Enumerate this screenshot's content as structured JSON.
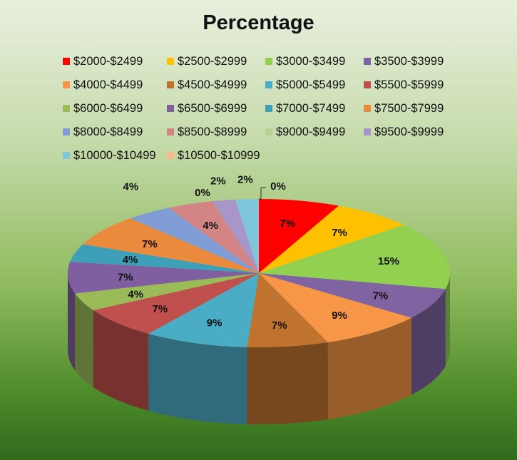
{
  "chart_data": {
    "type": "pie",
    "title": "Percentage",
    "legend_position": "top",
    "slices": [
      {
        "label": "$2000-$2499",
        "value": 7,
        "data_label": "7%",
        "color": "#ff0000"
      },
      {
        "label": "$2500-$2999",
        "value": 7,
        "data_label": "7%",
        "color": "#ffc000"
      },
      {
        "label": "$3000-$3499",
        "value": 15,
        "data_label": "15%",
        "color": "#92d050"
      },
      {
        "label": "$3500-$3999",
        "value": 7,
        "data_label": "7%",
        "color": "#8064a2"
      },
      {
        "label": "$4000-$4499",
        "value": 9,
        "data_label": "9%",
        "color": "#f79646"
      },
      {
        "label": "$4500-$4999",
        "value": 7,
        "data_label": "7%",
        "color": "#c0732f"
      },
      {
        "label": "$5000-$5499",
        "value": 9,
        "data_label": "9%",
        "color": "#4bacc6"
      },
      {
        "label": "$5500-$5999",
        "value": 7,
        "data_label": "7%",
        "color": "#c0504d"
      },
      {
        "label": "$6000-$6499",
        "value": 4,
        "data_label": "4%",
        "color": "#9bbb59"
      },
      {
        "label": "$6500-$6999",
        "value": 7,
        "data_label": "7%",
        "color": "#7f5fa0"
      },
      {
        "label": "$7000-$7499",
        "value": 4,
        "data_label": "4%",
        "color": "#3e9fb9"
      },
      {
        "label": "$7500-$7999",
        "value": 7,
        "data_label": "7%",
        "color": "#ea8a3c"
      },
      {
        "label": "$8000-$8499",
        "value": 4,
        "data_label": "4%",
        "color": "#7f9dd4"
      },
      {
        "label": "$8500-$8999",
        "value": 4,
        "data_label": "4%",
        "color": "#d38585"
      },
      {
        "label": "$9000-$9499",
        "value": 0,
        "data_label": "0%",
        "color": "#b9d396"
      },
      {
        "label": "$9500-$9999",
        "value": 2,
        "data_label": "2%",
        "color": "#a896c8"
      },
      {
        "label": "$10000-$10499",
        "value": 2,
        "data_label": "2%",
        "color": "#7fc6da"
      },
      {
        "label": "$10500-$10999",
        "value": 0,
        "data_label": "0%",
        "color": "#f7b98b"
      }
    ]
  }
}
